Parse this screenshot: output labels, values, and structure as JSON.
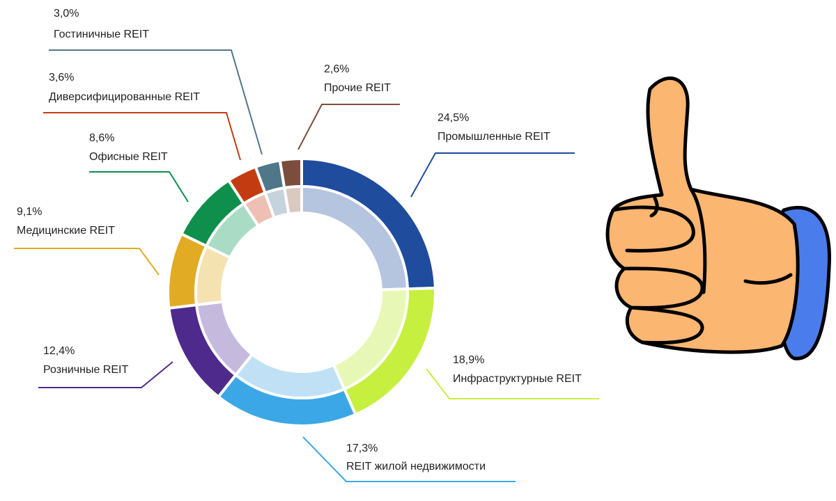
{
  "chart_data": {
    "type": "donut",
    "categories": [
      "Промышленные REIT",
      "Инфраструктурные REIT",
      "REIT жилой недвижимости",
      "Розничные REIT",
      "Медицинские REIT",
      "Офисные REIT",
      "Диверсифицированные REIT",
      "Гостиничные REIT",
      "Прочие REIT"
    ],
    "values": [
      24.5,
      18.9,
      17.3,
      12.4,
      9.1,
      8.6,
      3.6,
      3.0,
      2.6
    ],
    "value_labels": [
      "24,5%",
      "18,9%",
      "17,3%",
      "12,4%",
      "9,1%",
      "8,6%",
      "3,6%",
      "3,0%",
      "2,6%"
    ],
    "colors": [
      "#1f4c9c",
      "#c6ef3f",
      "#3ba7e6",
      "#4e2a8c",
      "#e1ab23",
      "#0e8f4b",
      "#c33c11",
      "#4f7689",
      "#7b4e3c"
    ],
    "inner_colors": [
      "#b5c4df",
      "#e7f8b6",
      "#c0e1f5",
      "#c5badd",
      "#f5e2b1",
      "#aadcc5",
      "#edc0b3",
      "#c5d3dc",
      "#d9c9c1"
    ]
  }
}
